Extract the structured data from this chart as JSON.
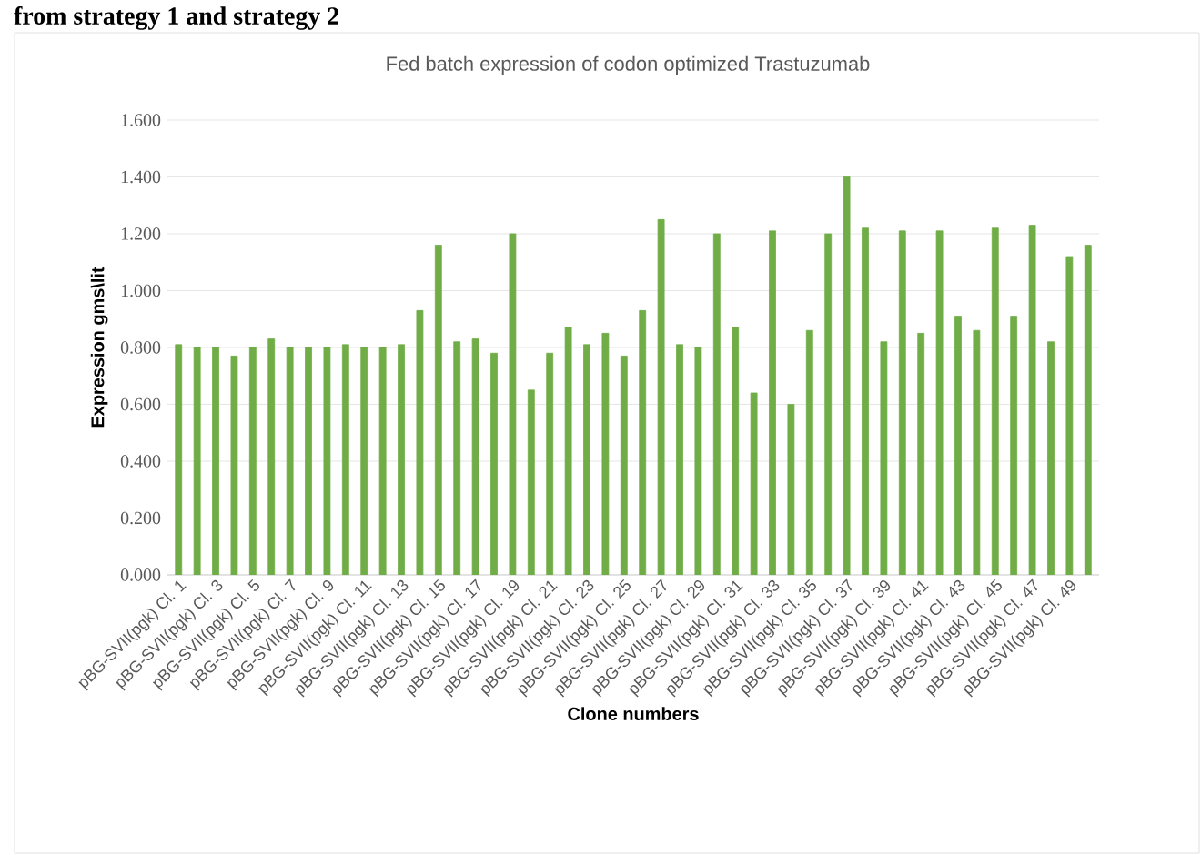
{
  "chart_data": {
    "type": "bar",
    "title": "Fed batch expression of  codon optimized Trastuzumab",
    "xlabel": "Clone numbers",
    "ylabel": "Expression gms\\lit",
    "annotations": [
      "from strategy 1 and strategy 2"
    ],
    "categories": [
      "pBG-SVII(pgk) Cl. 1",
      null,
      "pBG-SVII(pgk) Cl. 3",
      null,
      "pBG-SVII(pgk) Cl. 5",
      null,
      "pBG-SVII(pgk) Cl. 7",
      null,
      "pBG-SVII(pgk) Cl. 9",
      null,
      "pBG-SVII(pgk) Cl. 11",
      null,
      "pBG-SVII(pgk) Cl. 13",
      null,
      "pBG-SVII(pgk) Cl. 15",
      null,
      "pBG-SVII(pgk) Cl. 17",
      null,
      "pBG-SVII(pgk) Cl. 19",
      null,
      "pBG-SVII(pgk) Cl. 21",
      null,
      "pBG-SVII(pgk) Cl. 23",
      null,
      "pBG-SVII(pgk) Cl. 25",
      null,
      "pBG-SVII(pgk) Cl. 27",
      null,
      "pBG-SVII(pgk) Cl. 29",
      null,
      "pBG-SVII(pgk) Cl. 31",
      null,
      "pBG-SVII(pgk) Cl. 33",
      null,
      "pBG-SVII(pgk) Cl. 35",
      null,
      "pBG-SVII(pgk) Cl. 37",
      null,
      "pBG-SVII(pgk) Cl. 39",
      null,
      "pBG-SVII(pgk) Cl. 41",
      null,
      "pBG-SVII(pgk) Cl. 43",
      null,
      "pBG-SVII(pgk) Cl. 45",
      null,
      "pBG-SVII(pgk) Cl. 47",
      null,
      "pBG-SVII(pgk) Cl. 49",
      null
    ],
    "values": [
      0.81,
      0.8,
      0.8,
      0.77,
      0.8,
      0.83,
      0.8,
      0.8,
      0.8,
      0.81,
      0.8,
      0.8,
      0.81,
      0.93,
      1.16,
      0.82,
      0.83,
      0.78,
      1.2,
      0.65,
      0.78,
      0.87,
      0.81,
      0.85,
      0.77,
      0.93,
      1.25,
      0.81,
      0.8,
      1.2,
      0.87,
      0.64,
      1.21,
      0.6,
      0.86,
      1.2,
      1.4,
      1.22,
      0.82,
      1.21,
      0.85,
      1.21,
      0.91,
      0.86,
      1.22,
      0.91,
      1.23,
      0.82,
      1.12,
      1.16
    ],
    "color": "#70ad47",
    "ylim": [
      0,
      1.6
    ],
    "yticks": [
      {
        "value": 0,
        "label": "0.000"
      },
      {
        "value": 0.2,
        "label": "0.200"
      },
      {
        "value": 0.4,
        "label": "0.400"
      },
      {
        "value": 0.6,
        "label": "0.600"
      },
      {
        "value": 0.8,
        "label": "0.800"
      },
      {
        "value": 1.0,
        "label": "1.000"
      },
      {
        "value": 1.2,
        "label": "1.200"
      },
      {
        "value": 1.4,
        "label": "1.400"
      },
      {
        "value": 1.6,
        "label": "1.600"
      }
    ],
    "grid": "y"
  }
}
